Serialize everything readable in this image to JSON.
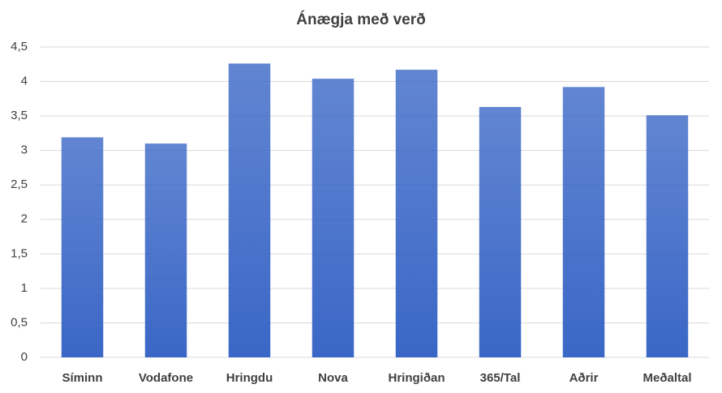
{
  "chart_data": {
    "type": "bar",
    "title": "Ánægja með verð",
    "categories": [
      "Síminn",
      "Vodafone",
      "Hringdu",
      "Nova",
      "Hringiðan",
      "365/Tal",
      "Aðrir",
      "Meðaltal"
    ],
    "values": [
      3.19,
      3.1,
      4.26,
      4.04,
      4.17,
      3.63,
      3.92,
      3.51
    ],
    "color": "#3a67c6",
    "ylim": [
      0,
      4.5
    ],
    "yticks": [
      0,
      {
        "value": 0.5,
        "label": "0,5"
      },
      1,
      {
        "value": 1.5,
        "label": "1,5"
      },
      2,
      {
        "value": 2.5,
        "label": "2,5"
      },
      3,
      {
        "value": 3.5,
        "label": "3,5"
      },
      4,
      {
        "value": 4.5,
        "label": "4,5"
      }
    ],
    "grid": true
  }
}
